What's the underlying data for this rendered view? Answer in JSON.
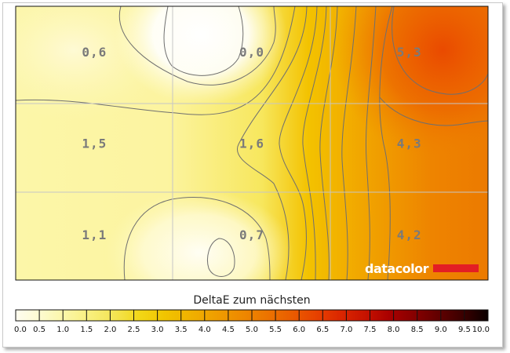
{
  "chart_data": {
    "type": "heatmap",
    "grid": {
      "rows": 3,
      "cols": 3
    },
    "cells": [
      {
        "row": 0,
        "col": 0,
        "label": "0,6",
        "value": 0.6
      },
      {
        "row": 0,
        "col": 1,
        "label": "0,0",
        "value": 0.0
      },
      {
        "row": 0,
        "col": 2,
        "label": "5,3",
        "value": 5.3
      },
      {
        "row": 1,
        "col": 0,
        "label": "1,5",
        "value": 1.5
      },
      {
        "row": 1,
        "col": 1,
        "label": "1,6",
        "value": 1.6
      },
      {
        "row": 1,
        "col": 2,
        "label": "4,3",
        "value": 4.3
      },
      {
        "row": 2,
        "col": 0,
        "label": "1,1",
        "value": 1.1
      },
      {
        "row": 2,
        "col": 1,
        "label": "0,7",
        "value": 0.7
      },
      {
        "row": 2,
        "col": 2,
        "label": "4,2",
        "value": 4.2
      }
    ],
    "brand": "datacolor",
    "brand_color": "#e31e24",
    "legend": {
      "title": "DeltaE zum nächsten",
      "min": 0,
      "max": 10,
      "ticks": [
        "0.0",
        "0.5",
        "1.0",
        "1.5",
        "2.0",
        "2.5",
        "3.0",
        "3.5",
        "4.0",
        "4.5",
        "5.0",
        "5.5",
        "6.0",
        "6.5",
        "7.0",
        "7.5",
        "8.0",
        "8.5",
        "9.0",
        "9.5",
        "10.0"
      ],
      "colors": [
        "#fffdf0",
        "#fdfbcf",
        "#fbf6a6",
        "#f8ef7c",
        "#f4e452",
        "#f2d716",
        "#f1c400",
        "#f0b200",
        "#ef9f00",
        "#ee8b00",
        "#ec7600",
        "#ea5f00",
        "#e84400",
        "#dc2800",
        "#c81400",
        "#aa0000",
        "#880000",
        "#620000",
        "#3a0000",
        "#0a0000"
      ]
    }
  }
}
